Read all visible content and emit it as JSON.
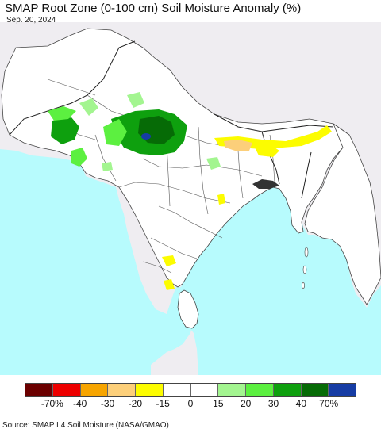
{
  "header": {
    "title": "SMAP Root Zone (0-100 cm) Soil Moisture Anomaly (%)",
    "date": "Sep. 20, 2024"
  },
  "colors": {
    "ocean": "#b7fbfd",
    "land": "#ffffff",
    "outside_land": "#efedf1",
    "border": "#444444"
  },
  "legend": {
    "swatches": [
      "#6b0000",
      "#ee0000",
      "#f7a500",
      "#fccf7a",
      "#fcfc00",
      "#ffffff",
      "#ffffff",
      "#a3f590",
      "#5cf040",
      "#0ea00e",
      "#066b06",
      "#163ca4"
    ],
    "labels": [
      "-70%",
      "-40",
      "-30",
      "-20",
      "-15",
      "0",
      "15",
      "20",
      "30",
      "40",
      "70%"
    ]
  },
  "footer": {
    "source": "Source: SMAP L4 Soil Moisture (NASA/GMAO)"
  }
}
